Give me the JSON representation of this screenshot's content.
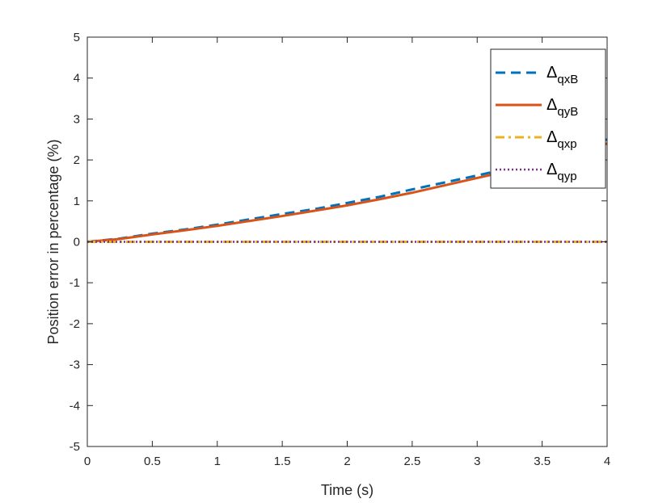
{
  "chart_data": {
    "type": "line",
    "xlabel": "Time (s)",
    "ylabel": "Position error in percentage (%)",
    "xlim": [
      0,
      4
    ],
    "ylim": [
      -5,
      5
    ],
    "x_ticks": [
      "0",
      "0.5",
      "1",
      "1.5",
      "2",
      "2.5",
      "3",
      "3.5",
      "4"
    ],
    "y_ticks": [
      "5",
      "4",
      "3",
      "2",
      "1",
      "0",
      "-1",
      "-2",
      "-3",
      "-4",
      "-5"
    ],
    "x_tick_values": [
      0,
      0.5,
      1,
      1.5,
      2,
      2.5,
      3,
      3.5,
      4
    ],
    "y_tick_values": [
      5,
      4,
      3,
      2,
      1,
      0,
      -1,
      -2,
      -3,
      -4,
      -5
    ],
    "grid": false,
    "legend_position": "top-right",
    "x": [
      0,
      0.25,
      0.5,
      0.75,
      1,
      1.25,
      1.5,
      1.75,
      2,
      2.25,
      2.5,
      2.75,
      3,
      3.25,
      3.5,
      3.75,
      4
    ],
    "series": [
      {
        "name": "Δ",
        "subscript": "qxB",
        "color": "#0072BD",
        "style": "dashed",
        "values": [
          0.0,
          0.08,
          0.2,
          0.3,
          0.42,
          0.55,
          0.68,
          0.8,
          0.95,
          1.1,
          1.28,
          1.45,
          1.62,
          1.8,
          2.0,
          2.25,
          2.5
        ]
      },
      {
        "name": "Δ",
        "subscript": "qyB",
        "color": "#D95319",
        "style": "solid",
        "values": [
          0.0,
          0.07,
          0.18,
          0.28,
          0.39,
          0.51,
          0.63,
          0.76,
          0.89,
          1.04,
          1.2,
          1.38,
          1.56,
          1.74,
          1.93,
          2.15,
          2.4
        ]
      },
      {
        "name": "Δ",
        "subscript": "qxp",
        "color": "#EDB120",
        "style": "dashdot",
        "values": [
          0,
          0,
          0,
          0,
          0,
          0,
          0,
          0,
          0,
          0,
          0,
          0,
          0,
          0,
          0,
          0,
          0
        ]
      },
      {
        "name": "Δ",
        "subscript": "qyp",
        "color": "#7E2F8E",
        "style": "dotted",
        "values": [
          0,
          0,
          0,
          0,
          0,
          0,
          0,
          0,
          0,
          0,
          0,
          0,
          0,
          0,
          0,
          0,
          0
        ]
      }
    ]
  }
}
